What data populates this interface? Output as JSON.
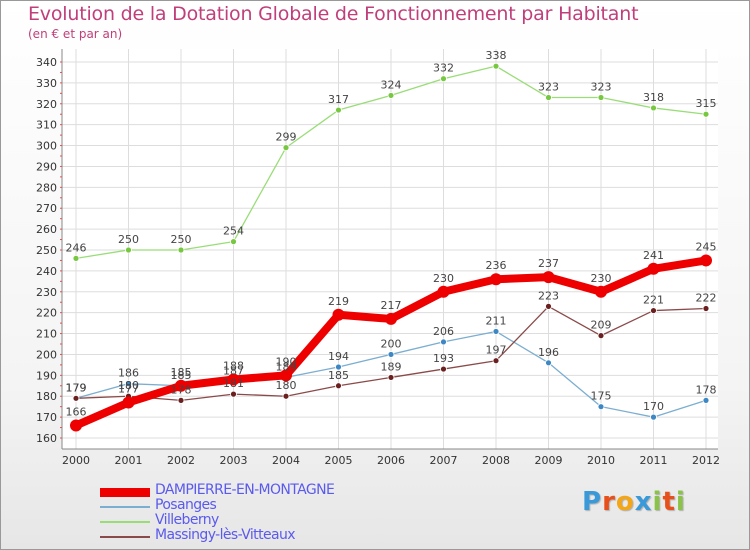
{
  "page": {
    "title": "Evolution de la Dotation Globale de Fonctionnement par Habitant",
    "subtitle": "(en € et par an)"
  },
  "logo": {
    "text": "Proxiti",
    "letters": [
      "P",
      "r",
      "o",
      "x",
      "i",
      "t",
      "i"
    ],
    "colors": [
      "#3a9ad9",
      "#e8501b",
      "#f2a618",
      "#3a9ad9",
      "#8bc34a",
      "#e8501b",
      "#8bc34a"
    ]
  },
  "chart_data": {
    "type": "line",
    "title": "Evolution de la Dotation Globale de Fonctionnement par Habitant",
    "subtitle": "(en € et par an)",
    "xlabel": "",
    "ylabel": "",
    "x": [
      2000,
      2001,
      2002,
      2003,
      2004,
      2005,
      2006,
      2007,
      2008,
      2009,
      2010,
      2011,
      2012
    ],
    "ylim": [
      160,
      340
    ],
    "yticks": [
      160,
      170,
      180,
      190,
      200,
      210,
      220,
      230,
      240,
      250,
      260,
      270,
      280,
      290,
      300,
      310,
      320,
      330,
      340
    ],
    "grid": true,
    "legend_position": "bottom-left",
    "series": [
      {
        "name": "DAMPIERRE-EN-MONTAGNE",
        "color": "#ee0000",
        "marker": "#ee0000",
        "label_color": "#5a5aee",
        "values": [
          166,
          177,
          185,
          188,
          190,
          219,
          217,
          230,
          236,
          237,
          230,
          241,
          245
        ]
      },
      {
        "name": "Posanges",
        "color": "#7baed1",
        "marker": "#3d87c4",
        "label_color": "#5a5aee",
        "values": [
          179,
          186,
          185,
          187,
          189,
          194,
          200,
          206,
          211,
          196,
          175,
          170,
          178
        ]
      },
      {
        "name": "Villeberny",
        "color": "#99dd77",
        "marker": "#77c840",
        "label_color": "#5a5aee",
        "values": [
          246,
          250,
          250,
          254,
          299,
          317,
          324,
          332,
          338,
          323,
          323,
          318,
          315
        ]
      },
      {
        "name": "Massingy-lès-Vitteaux",
        "color": "#8b4a4a",
        "marker": "#6b2020",
        "label_color": "#5a5aee",
        "values": [
          179,
          180,
          178,
          181,
          180,
          185,
          189,
          193,
          197,
          223,
          209,
          221,
          222
        ]
      }
    ]
  }
}
